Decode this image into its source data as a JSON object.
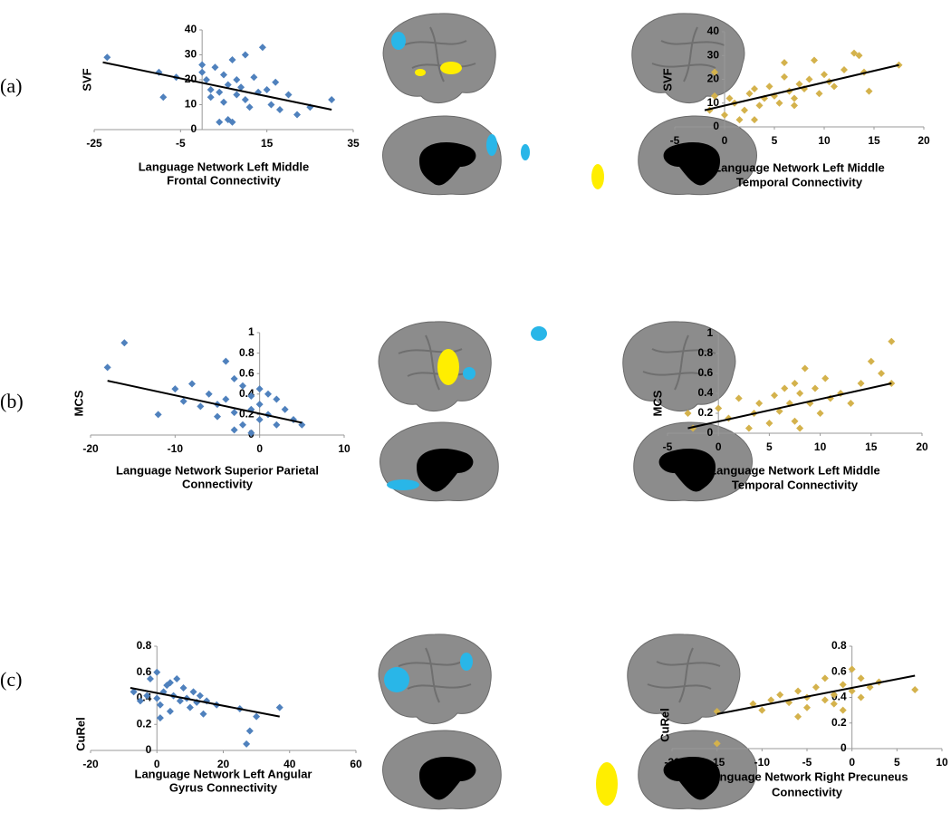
{
  "panel_labels": [
    "(a)",
    "(b)",
    "(c)"
  ],
  "chart_data": [
    {
      "type": "scatter",
      "ylabel": "SVF",
      "xlabel": [
        "Language Network Left Middle",
        "Frontal Connectivity"
      ],
      "color": "#4f81bd",
      "xlim": [
        -25,
        35
      ],
      "xticks": [
        -25,
        -5,
        15,
        35
      ],
      "ylim": [
        0,
        40
      ],
      "yticks": [
        0,
        10,
        20,
        30,
        40
      ],
      "x": [
        -22,
        -10,
        -9,
        -6,
        0,
        0,
        1,
        2,
        3,
        4,
        5,
        5,
        6,
        6,
        7,
        8,
        8,
        9,
        10,
        10,
        11,
        12,
        13,
        14,
        15,
        16,
        17,
        18,
        20,
        22,
        25,
        30,
        4,
        7,
        2
      ],
      "values": [
        29,
        23,
        13,
        21,
        23,
        26,
        20,
        16,
        25,
        15,
        22,
        11,
        18,
        4,
        28,
        14,
        20,
        17,
        12,
        30,
        9,
        21,
        15,
        33,
        16,
        10,
        19,
        8,
        14,
        6,
        9,
        12,
        3,
        3,
        13
      ],
      "trendline": {
        "x": [
          -23,
          30
        ],
        "y": [
          27,
          8
        ]
      }
    },
    {
      "type": "scatter",
      "ylabel": "SVF",
      "xlabel": [
        "Language Network Left Middle",
        "Temporal Connectivity"
      ],
      "color": "#d4b24c",
      "xlim": [
        -5,
        20
      ],
      "xticks": [
        -5,
        0,
        5,
        10,
        15,
        20
      ],
      "ylim": [
        0,
        40
      ],
      "yticks": [
        0,
        10,
        20,
        30,
        40
      ],
      "x": [
        -1.5,
        -1,
        -1,
        0,
        0.5,
        1,
        1.5,
        2,
        2.5,
        3,
        3.5,
        4,
        4.5,
        5,
        5.5,
        6,
        6,
        6.5,
        7,
        7.5,
        8,
        8.5,
        9,
        9.5,
        10,
        10.5,
        11,
        12,
        13,
        13.5,
        14,
        14.5,
        17.5,
        3,
        7
      ],
      "values": [
        7,
        23,
        13,
        5,
        12,
        10,
        3,
        7,
        14,
        16,
        9,
        12,
        17,
        13,
        10,
        21,
        27,
        15,
        12,
        18,
        16,
        20,
        28,
        14,
        22,
        19,
        17,
        24,
        31,
        30,
        23,
        15,
        26,
        3,
        9
      ],
      "trendline": {
        "x": [
          -2,
          17.5
        ],
        "y": [
          7,
          26
        ]
      }
    },
    {
      "type": "scatter",
      "ylabel": "MCS",
      "xlabel": [
        "Language Network Superior Parietal",
        "Connectivity"
      ],
      "color": "#4f81bd",
      "xlim": [
        -20,
        10
      ],
      "xticks": [
        -20,
        -10,
        0,
        10
      ],
      "ylim": [
        0,
        1
      ],
      "yticks": [
        0,
        0.2,
        0.4,
        0.6,
        0.8,
        1
      ],
      "x": [
        -18,
        -16,
        -12,
        -10,
        -9,
        -8,
        -7,
        -6,
        -5,
        -4,
        -4,
        -3,
        -3,
        -2,
        -2,
        -1,
        -1,
        0,
        0,
        0,
        1,
        1,
        2,
        2,
        3,
        4,
        5,
        -3,
        -5,
        -1
      ],
      "values": [
        0.66,
        0.9,
        0.2,
        0.45,
        0.33,
        0.5,
        0.28,
        0.4,
        0.18,
        0.72,
        0.35,
        0.55,
        0.22,
        0.48,
        0.1,
        0.38,
        0.25,
        0.45,
        0.3,
        0.15,
        0.4,
        0.2,
        0.35,
        0.1,
        0.25,
        0.15,
        0.1,
        0.05,
        0.3,
        0.02
      ],
      "trendline": {
        "x": [
          -18,
          5
        ],
        "y": [
          0.53,
          0.12
        ]
      }
    },
    {
      "type": "scatter",
      "ylabel": "MCS",
      "xlabel": [
        "Language Network Left Middle",
        "Temporal Connectivity"
      ],
      "color": "#d4b24c",
      "xlim": [
        -5,
        20
      ],
      "xticks": [
        -5,
        0,
        5,
        10,
        15,
        20
      ],
      "ylim": [
        0,
        1
      ],
      "yticks": [
        0,
        0.2,
        0.4,
        0.6,
        0.8,
        1
      ],
      "x": [
        -3,
        -2.5,
        0,
        1,
        2,
        3,
        3.5,
        4,
        5,
        5.5,
        6,
        6.5,
        7,
        7.5,
        7.5,
        8,
        8.5,
        9,
        9.5,
        10,
        10.5,
        11,
        12,
        13,
        14,
        15,
        16,
        17,
        17,
        8
      ],
      "values": [
        0.2,
        0.05,
        0.25,
        0.15,
        0.35,
        0.05,
        0.2,
        0.3,
        0.1,
        0.38,
        0.22,
        0.45,
        0.3,
        0.12,
        0.5,
        0.4,
        0.65,
        0.3,
        0.45,
        0.2,
        0.55,
        0.35,
        0.4,
        0.3,
        0.5,
        0.72,
        0.6,
        0.92,
        0.5,
        0.05
      ],
      "trendline": {
        "x": [
          -3,
          17
        ],
        "y": [
          0.05,
          0.5
        ]
      }
    },
    {
      "type": "scatter",
      "ylabel": "CuRel",
      "xlabel": [
        "Language Network Left Angular",
        "Gyrus Connectivity"
      ],
      "color": "#4f81bd",
      "xlim": [
        -20,
        60
      ],
      "xticks": [
        -20,
        0,
        20,
        40,
        60
      ],
      "ylim": [
        0,
        0.8
      ],
      "yticks": [
        0,
        0.2,
        0.4,
        0.6,
        0.8
      ],
      "x": [
        -7,
        -5,
        -3,
        -2,
        0,
        0,
        1,
        2,
        3,
        4,
        5,
        6,
        7,
        8,
        9,
        10,
        11,
        12,
        13,
        15,
        18,
        25,
        27,
        28,
        30,
        37,
        1,
        4,
        14
      ],
      "values": [
        0.45,
        0.38,
        0.42,
        0.55,
        0.4,
        0.6,
        0.35,
        0.45,
        0.5,
        0.3,
        0.42,
        0.55,
        0.38,
        0.48,
        0.4,
        0.33,
        0.45,
        0.37,
        0.42,
        0.38,
        0.35,
        0.32,
        0.05,
        0.15,
        0.26,
        0.33,
        0.25,
        0.52,
        0.28
      ],
      "trendline": {
        "x": [
          -8,
          37
        ],
        "y": [
          0.48,
          0.26
        ]
      }
    },
    {
      "type": "scatter",
      "ylabel": "CuRel",
      "xlabel": [
        "Language Network Right Precuneus",
        "Connectivity"
      ],
      "color": "#d4b24c",
      "xlim": [
        -20,
        10
      ],
      "xticks": [
        -20,
        -15,
        -10,
        -5,
        0,
        5,
        10
      ],
      "ylim": [
        0,
        0.8
      ],
      "yticks": [
        0,
        0.2,
        0.4,
        0.6,
        0.8
      ],
      "x": [
        -15,
        -15,
        -11,
        -10,
        -9,
        -8,
        -7,
        -6,
        -5,
        -5,
        -4,
        -3,
        -3,
        -2,
        -1,
        -1,
        0,
        0,
        1,
        1,
        2,
        3,
        7,
        -6,
        -2
      ],
      "values": [
        0.29,
        0.04,
        0.35,
        0.3,
        0.38,
        0.42,
        0.36,
        0.45,
        0.4,
        0.32,
        0.48,
        0.38,
        0.55,
        0.42,
        0.5,
        0.3,
        0.45,
        0.62,
        0.4,
        0.55,
        0.48,
        0.52,
        0.46,
        0.25,
        0.35
      ],
      "trendline": {
        "x": [
          -15,
          7
        ],
        "y": [
          0.27,
          0.57
        ]
      }
    }
  ]
}
